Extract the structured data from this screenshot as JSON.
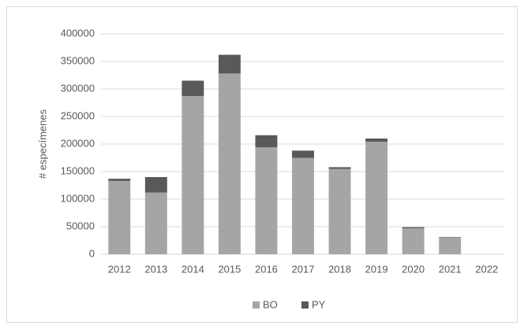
{
  "chart_data": {
    "type": "stacked_bar",
    "y_label": "# especímenes",
    "categories": [
      "2012",
      "2013",
      "2014",
      "2015",
      "2016",
      "2017",
      "2018",
      "2019",
      "2020",
      "2021",
      "2022"
    ],
    "series": [
      {
        "name": "BO",
        "color": "#a5a5a5",
        "values": [
          133000,
          112000,
          287000,
          328000,
          194000,
          175000,
          155000,
          204000,
          47000,
          30000,
          0
        ]
      },
      {
        "name": "PY",
        "color": "#595959",
        "values": [
          4000,
          28000,
          28000,
          34000,
          22000,
          13000,
          3000,
          6000,
          2000,
          1000,
          0
        ]
      }
    ],
    "ylim": [
      0,
      400000
    ],
    "yticks": [
      0,
      50000,
      100000,
      150000,
      200000,
      250000,
      300000,
      350000,
      400000
    ],
    "grid": true,
    "legend": "bottom"
  }
}
